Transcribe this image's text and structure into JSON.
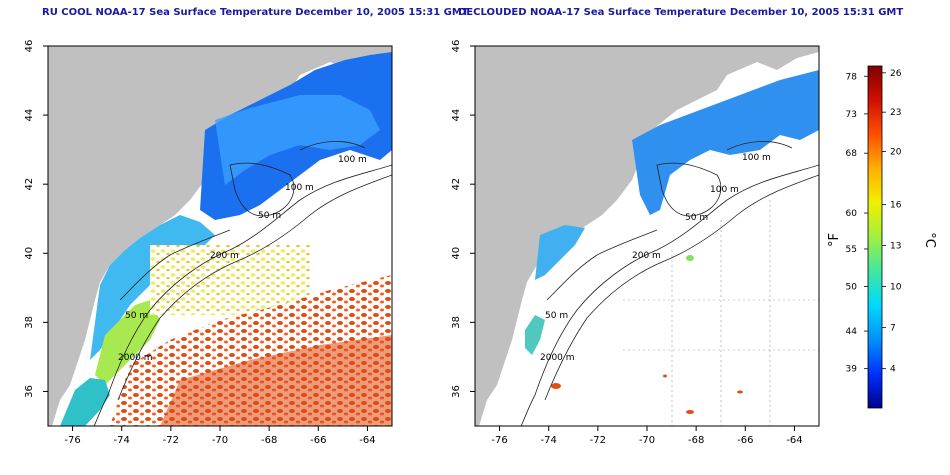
{
  "panels": [
    {
      "title": "RU COOL NOAA-17 Sea Surface Temperature December 10, 2005 15:31 GMT",
      "contour_labels": [
        "100 m",
        "100 m",
        "50 m",
        "200 m",
        "50 m",
        "2000 m"
      ]
    },
    {
      "title": "DECLOUDED NOAA-17 Sea Surface Temperature December 10, 2005 15:31 GMT",
      "contour_labels": [
        "100 m",
        "100 m",
        "50 m",
        "200 m",
        "50 m",
        "2000 m"
      ]
    }
  ],
  "axes": {
    "x_ticks": [
      "-76",
      "-74",
      "-72",
      "-70",
      "-68",
      "-66",
      "-64"
    ],
    "y_ticks": [
      "36",
      "38",
      "40",
      "42",
      "44",
      "46"
    ],
    "x_range": [
      -77,
      -63
    ],
    "y_range": [
      35,
      46
    ]
  },
  "colorbar": {
    "fahrenheit_unit": "°F",
    "celsius_unit": "°C",
    "fahrenheit_ticks": [
      "78",
      "73",
      "68",
      "60",
      "55",
      "50",
      "44",
      "39"
    ],
    "celsius_ticks": [
      "26",
      "23",
      "20",
      "16",
      "13",
      "10",
      "7",
      "4"
    ],
    "colors": [
      "#00008b",
      "#0030ff",
      "#0090ff",
      "#00d8ff",
      "#40e8a0",
      "#a0f040",
      "#f0f000",
      "#ffb000",
      "#ff5000",
      "#d01000",
      "#800000"
    ]
  },
  "colors": {
    "land": "#c0c0c0",
    "ocean_nodata": "#ffffff",
    "title": "#1a1aa0"
  }
}
